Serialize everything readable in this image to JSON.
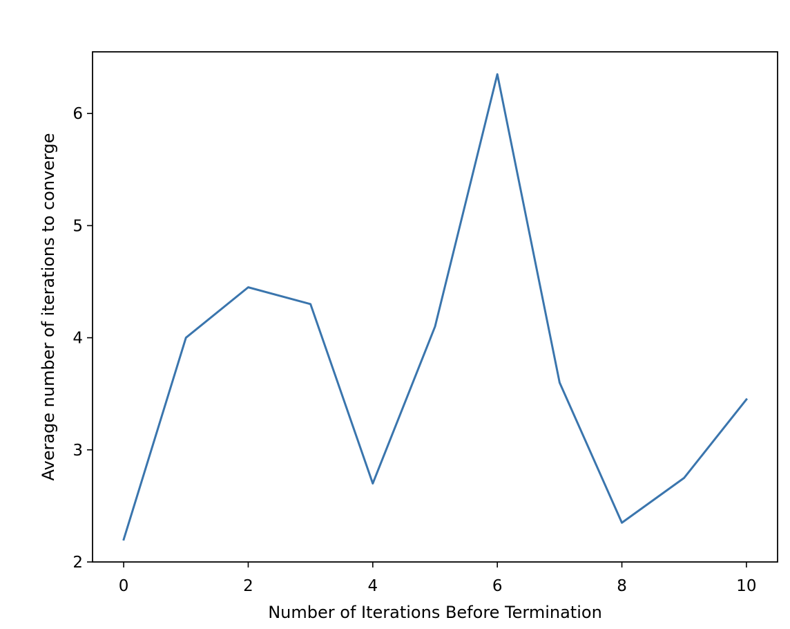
{
  "chart_data": {
    "type": "line",
    "title": "",
    "xlabel": "Number of Iterations Before Termination",
    "ylabel": "Average number of iterations to converge",
    "xlim": [
      -0.5,
      10.5
    ],
    "ylim": [
      2,
      6.55
    ],
    "xticks": [
      0,
      2,
      4,
      6,
      8,
      10
    ],
    "xtick_labels": [
      "0",
      "2",
      "4",
      "6",
      "8",
      "10"
    ],
    "yticks": [
      2,
      3,
      4,
      5,
      6
    ],
    "ytick_labels": [
      "2",
      "3",
      "4",
      "5",
      "6"
    ],
    "grid": false,
    "legend": "none",
    "series": [
      {
        "color": "#3a75ad",
        "x": [
          0,
          1,
          2,
          3,
          4,
          5,
          6,
          7,
          8,
          9,
          10
        ],
        "y": [
          2.2,
          4.0,
          4.45,
          4.3,
          2.7,
          4.1,
          6.35,
          3.6,
          2.35,
          2.75,
          3.45
        ]
      }
    ]
  }
}
